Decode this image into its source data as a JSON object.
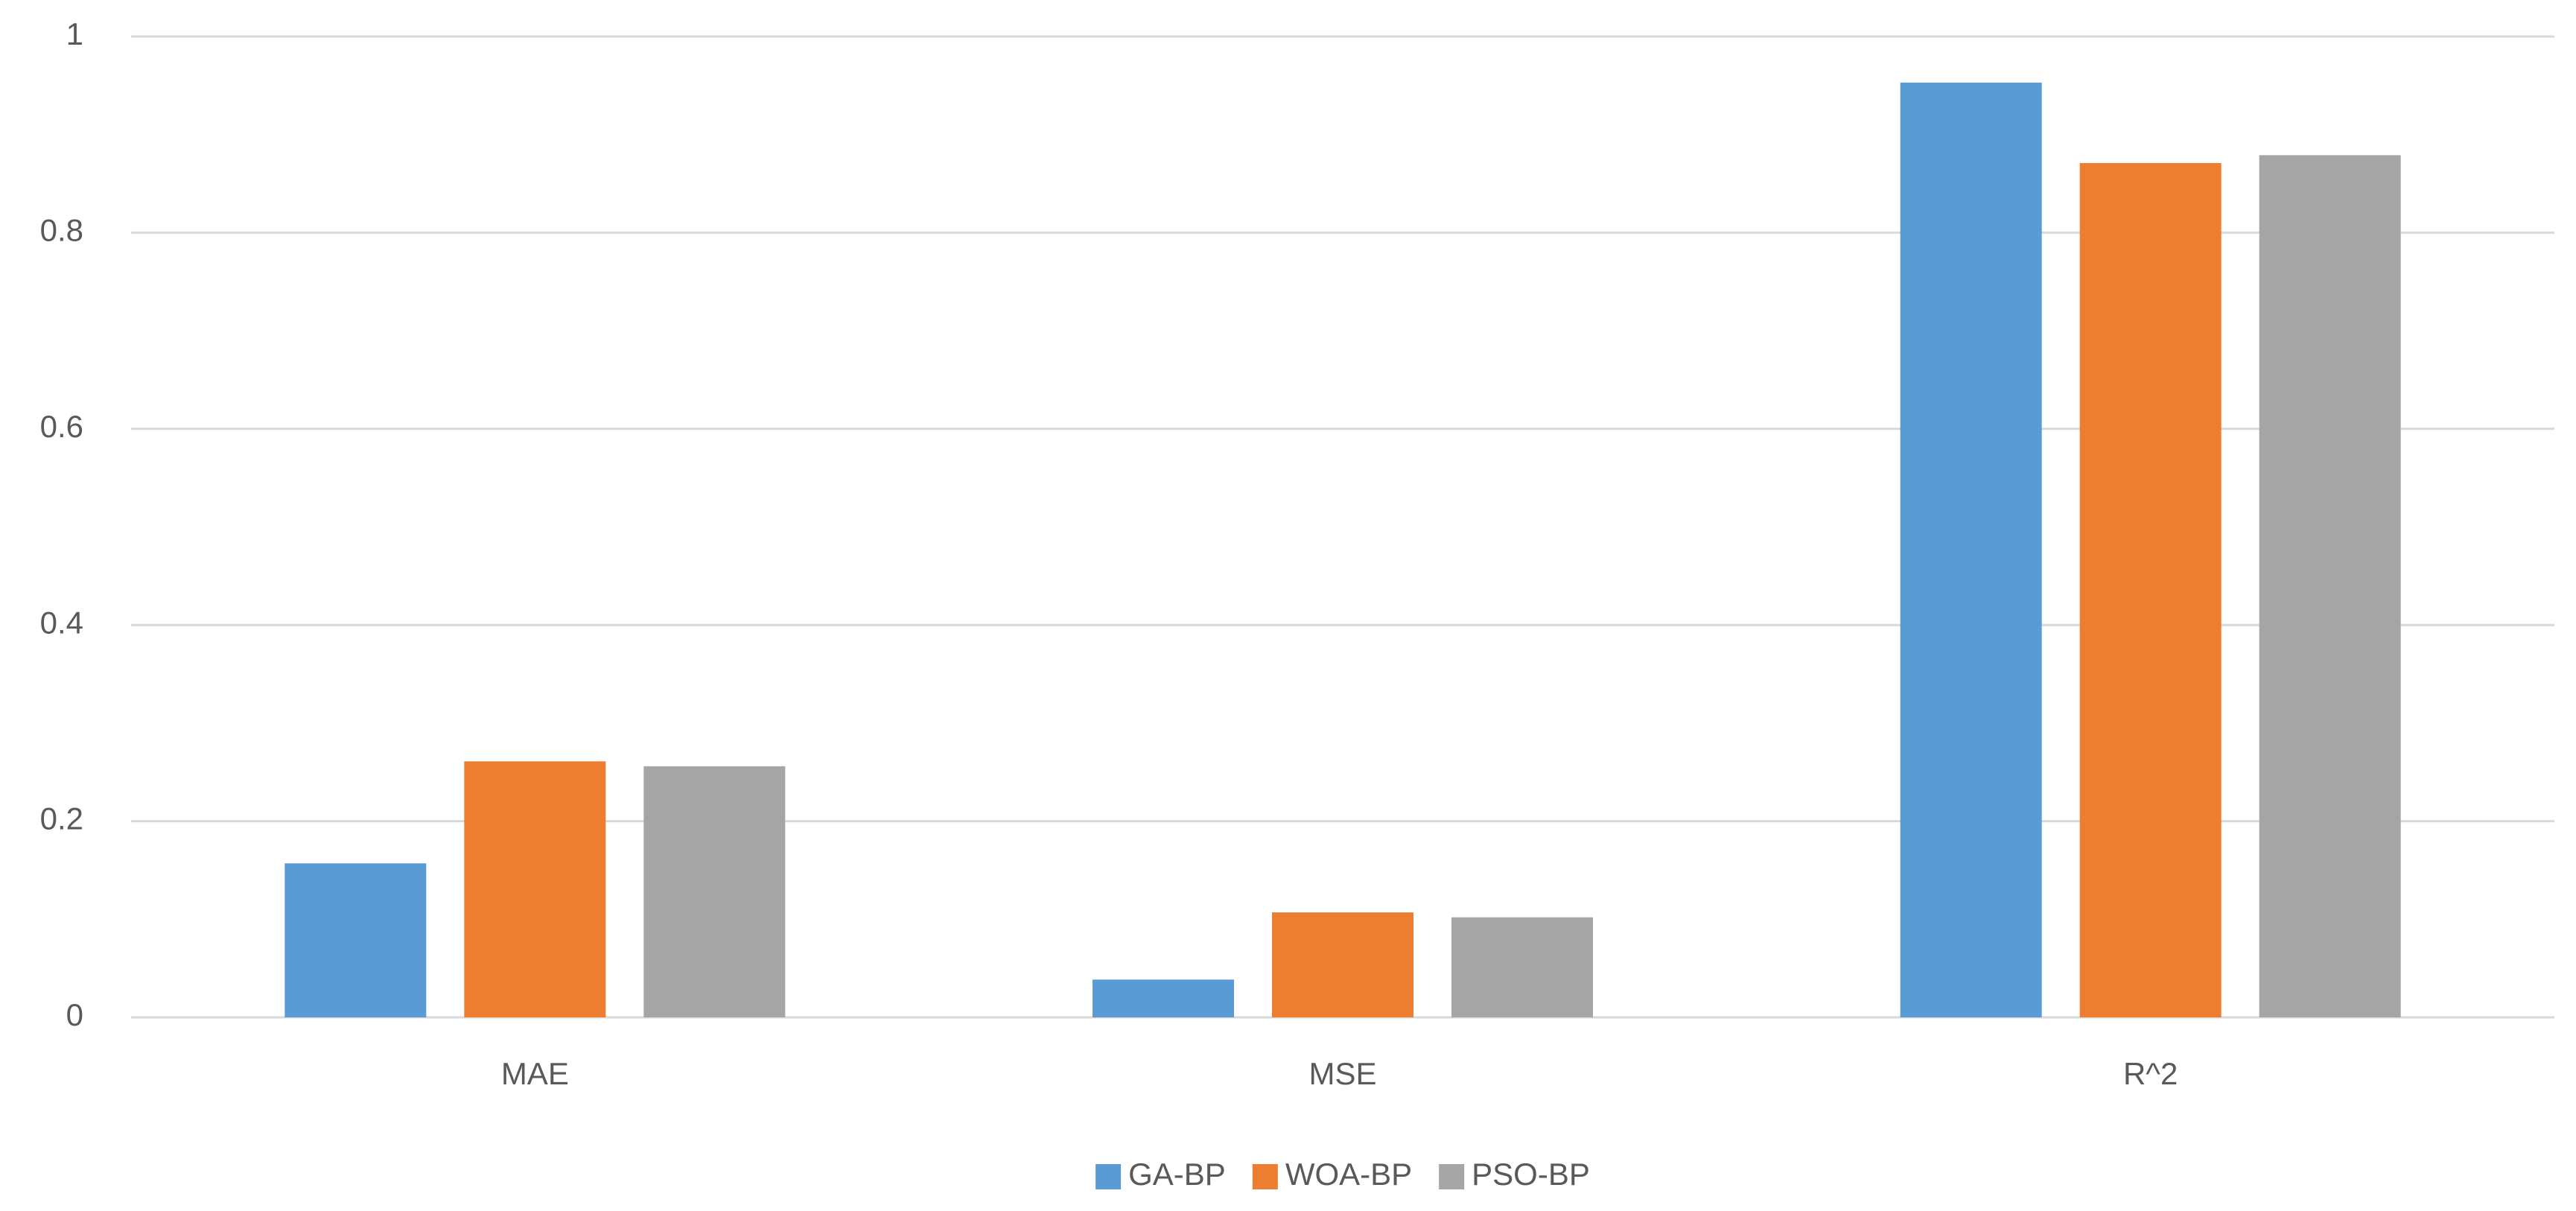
{
  "chart_data": {
    "type": "bar",
    "categories": [
      "MAE",
      "MSE",
      "R^2"
    ],
    "series": [
      {
        "name": "GA-BP",
        "color": "#5b9bd5",
        "values": [
          0.157,
          0.0385,
          0.953
        ]
      },
      {
        "name": "WOA-BP",
        "color": "#ed7d31",
        "values": [
          0.261,
          0.107,
          0.871
        ]
      },
      {
        "name": "PSO-BP",
        "color": "#a5a5a5",
        "values": [
          0.256,
          0.102,
          0.879
        ]
      }
    ],
    "ylim": [
      0,
      1
    ],
    "yticks": [
      0,
      0.2,
      0.4,
      0.6,
      0.8,
      1
    ],
    "grid": true,
    "legend": "bottom"
  }
}
